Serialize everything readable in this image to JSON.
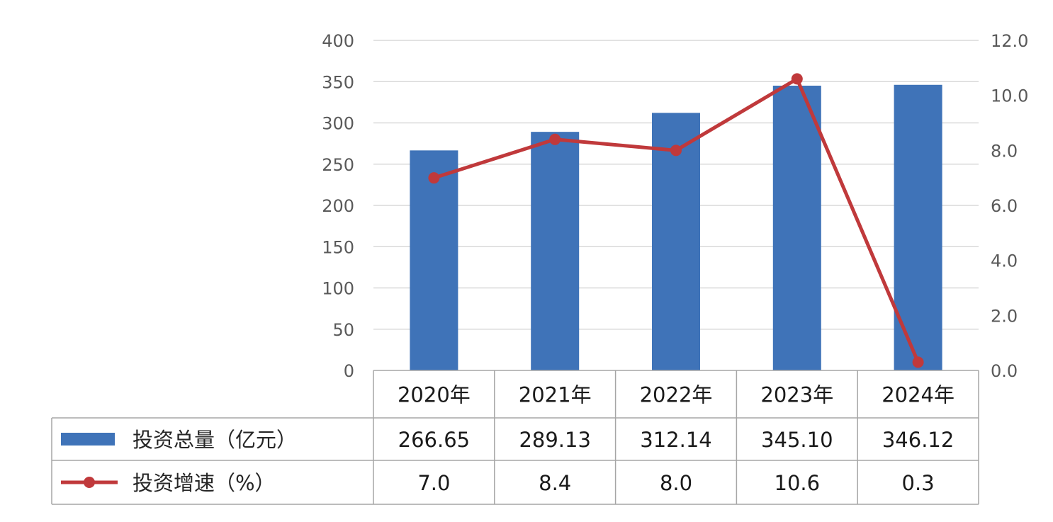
{
  "chart_data": {
    "type": "bar+line",
    "categories": [
      "2020年",
      "2021年",
      "2022年",
      "2023年",
      "2024年"
    ],
    "series": [
      {
        "name": "投资总量（亿元）",
        "type": "bar",
        "axis": "left",
        "color": "#3f73b8",
        "values": [
          266.65,
          289.13,
          312.14,
          345.1,
          346.12
        ],
        "display": [
          "266.65",
          "289.13",
          "312.14",
          "345.10",
          "346.12"
        ]
      },
      {
        "name": "投资增速（%）",
        "type": "line",
        "axis": "right",
        "color": "#c0393b",
        "values": [
          7.0,
          8.4,
          8.0,
          10.6,
          0.3
        ],
        "display": [
          "7.0",
          "8.4",
          "8.0",
          "10.6",
          "0.3"
        ]
      }
    ],
    "y_left": {
      "range": [
        0,
        400
      ],
      "ticks": [
        0,
        50,
        100,
        150,
        200,
        250,
        300,
        350,
        400
      ],
      "tick_labels": [
        "0",
        "50",
        "100",
        "150",
        "200",
        "250",
        "300",
        "350",
        "400"
      ]
    },
    "y_right": {
      "range": [
        0,
        12
      ],
      "ticks": [
        0,
        2,
        4,
        6,
        8,
        10,
        12
      ],
      "tick_labels": [
        "0.0",
        "2.0",
        "4.0",
        "6.0",
        "8.0",
        "10.0",
        "12.0"
      ]
    },
    "grid": true,
    "legend": "data-table-below"
  }
}
